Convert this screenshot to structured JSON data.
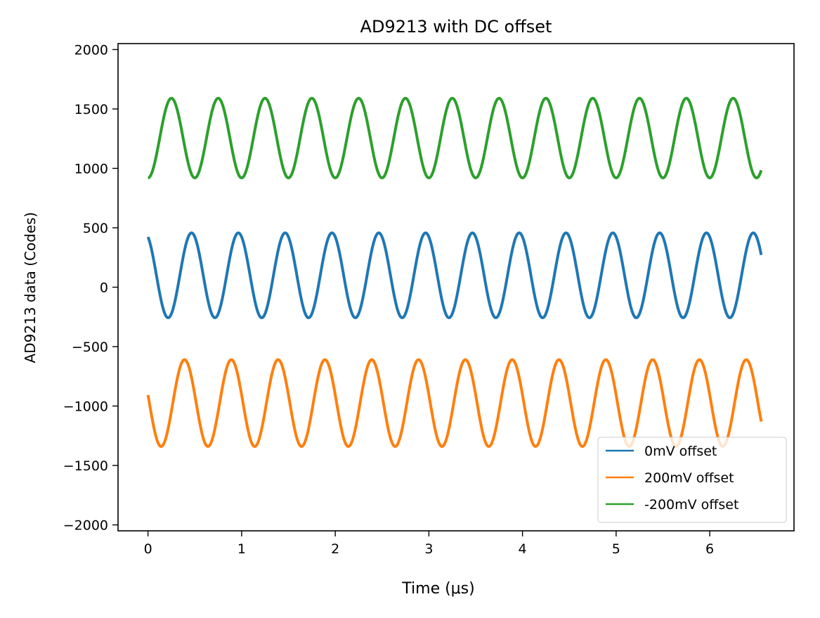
{
  "chart_data": {
    "type": "line",
    "title": "AD9213 with DC offset",
    "xlabel": "Time (μs)",
    "ylabel": "AD9213 data (Codes)",
    "xlim": [
      -0.32,
      6.9
    ],
    "ylim": [
      -2050,
      2050
    ],
    "xticks": [
      0,
      1,
      2,
      3,
      4,
      5,
      6
    ],
    "yticks": [
      -2000,
      -1500,
      -1000,
      -500,
      0,
      500,
      1000,
      1500,
      2000
    ],
    "ytick_labels": [
      "−2000",
      "−1500",
      "−1000",
      "−500",
      "0",
      "500",
      "1000",
      "1500",
      "2000"
    ],
    "grid": false,
    "legend_position": "lower-right",
    "series": [
      {
        "name": "0mV offset",
        "color": "#1f77b4",
        "model": "sine",
        "offset": 100,
        "amplitude": 357,
        "period_us": 0.5,
        "peak_time_us": 0.465,
        "t_start": 0,
        "t_end": 6.55
      },
      {
        "name": "200mV offset",
        "color": "#ff7f0e",
        "model": "sine",
        "offset": -975,
        "amplitude": 365,
        "period_us": 0.5,
        "peak_time_us": 0.39,
        "t_start": 0,
        "t_end": 6.55
      },
      {
        "name": "-200mV offset",
        "color": "#2ca02c",
        "model": "sine",
        "offset": 1255,
        "amplitude": 335,
        "period_us": 0.5,
        "peak_time_us": 0.25,
        "t_start": 0,
        "t_end": 6.55
      }
    ]
  }
}
